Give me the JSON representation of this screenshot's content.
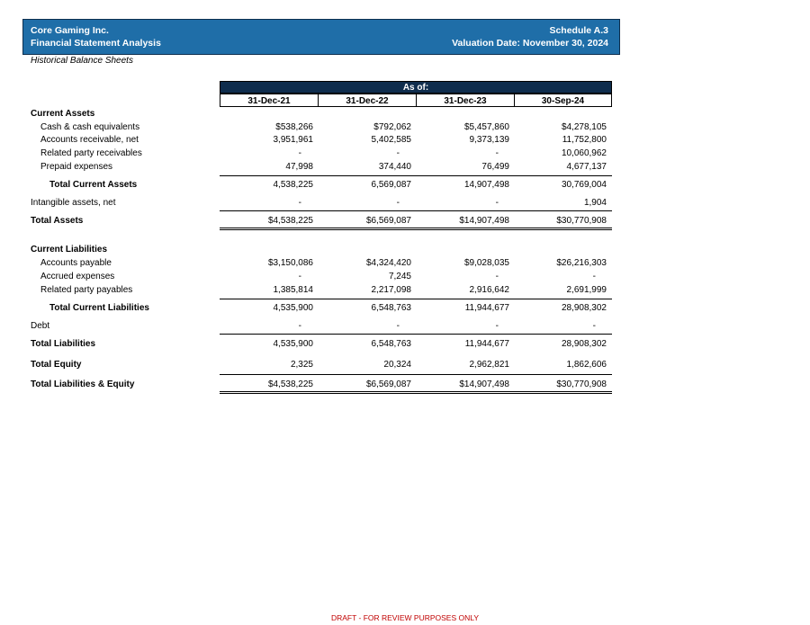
{
  "header": {
    "company": "Core Gaming Inc.",
    "report": "Financial Statement Analysis",
    "schedule": "Schedule A.3",
    "valuation_date": "Valuation Date: November 30, 2024"
  },
  "subtitle": "Historical Balance Sheets",
  "table": {
    "group_header": "As of:",
    "columns": [
      "31-Dec-21",
      "31-Dec-22",
      "31-Dec-23",
      "30-Sep-24"
    ],
    "rows": [
      {
        "label": "Current Assets",
        "values": [
          "",
          "",
          "",
          ""
        ]
      },
      {
        "label": "Cash & cash equivalents",
        "values": [
          "$538,266",
          "$792,062",
          "$5,457,860",
          "$4,278,105"
        ]
      },
      {
        "label": "Accounts receivable, net",
        "values": [
          "3,951,961",
          "5,402,585",
          "9,373,139",
          "11,752,800"
        ]
      },
      {
        "label": "Related party receivables",
        "values": [
          "-",
          "-",
          "-",
          "10,060,962"
        ]
      },
      {
        "label": "Prepaid expenses",
        "values": [
          "47,998",
          "374,440",
          "76,499",
          "4,677,137"
        ]
      },
      {
        "label": "Total Current Assets",
        "values": [
          "4,538,225",
          "6,569,087",
          "14,907,498",
          "30,769,004"
        ]
      },
      {
        "label": "Intangible assets, net",
        "values": [
          "-",
          "-",
          "-",
          "1,904"
        ]
      },
      {
        "label": "Total Assets",
        "values": [
          "$4,538,225",
          "$6,569,087",
          "$14,907,498",
          "$30,770,908"
        ]
      },
      {
        "label": "Current Liabilities",
        "values": [
          "",
          "",
          "",
          ""
        ]
      },
      {
        "label": "Accounts payable",
        "values": [
          "$3,150,086",
          "$4,324,420",
          "$9,028,035",
          "$26,216,303"
        ]
      },
      {
        "label": "Accrued expenses",
        "values": [
          "-",
          "7,245",
          "-",
          "-"
        ]
      },
      {
        "label": "Related party payables",
        "values": [
          "1,385,814",
          "2,217,098",
          "2,916,642",
          "2,691,999"
        ]
      },
      {
        "label": "Total Current Liabilities",
        "values": [
          "4,535,900",
          "6,548,763",
          "11,944,677",
          "28,908,302"
        ]
      },
      {
        "label": "Debt",
        "values": [
          "-",
          "-",
          "-",
          "-"
        ]
      },
      {
        "label": "Total Liabilities",
        "values": [
          "4,535,900",
          "6,548,763",
          "11,944,677",
          "28,908,302"
        ]
      },
      {
        "label": "Total Equity",
        "values": [
          "2,325",
          "20,324",
          "2,962,821",
          "1,862,606"
        ]
      },
      {
        "label": "Total Liabilities & Equity",
        "values": [
          "$4,538,225",
          "$6,569,087",
          "$14,907,498",
          "$30,770,908"
        ]
      }
    ]
  },
  "footer": "DRAFT - FOR REVIEW PURPOSES ONLY"
}
